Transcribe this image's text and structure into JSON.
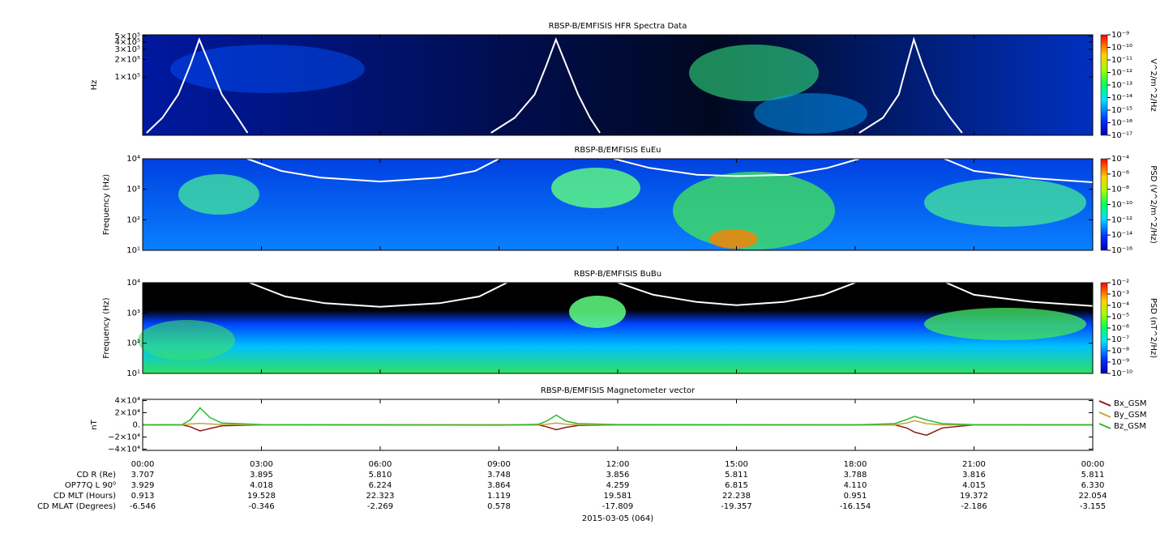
{
  "chart_data": [
    {
      "type": "spectrogram",
      "title": "RBSP-B/EMFISIS  HFR Spectra Data",
      "ylabel": "Hz",
      "log_y": true,
      "ylim": [
        10000,
        530000
      ],
      "yticks": [
        {
          "value": 100000,
          "label": "1×10⁵"
        },
        {
          "value": 200000,
          "label": "2×10⁵"
        },
        {
          "value": 300000,
          "label": "3×10⁵"
        },
        {
          "value": 400000,
          "label": "4×10⁵"
        },
        {
          "value": 500000,
          "label": "5×10⁵"
        }
      ],
      "colorbar": {
        "label": "V^2/m^2/Hz",
        "zlim": [
          1e-17,
          1e-09
        ],
        "ticks": [
          {
            "value": 1e-17,
            "label": "10⁻¹⁷"
          },
          {
            "value": 1e-16,
            "label": "10⁻¹⁶"
          },
          {
            "value": 1e-15,
            "label": "10⁻¹⁵"
          },
          {
            "value": 1e-14,
            "label": "10⁻¹⁴"
          },
          {
            "value": 1e-13,
            "label": "10⁻¹³"
          },
          {
            "value": 1e-12,
            "label": "10⁻¹²"
          },
          {
            "value": 1e-11,
            "label": "10⁻¹¹"
          },
          {
            "value": 1e-10,
            "label": "10⁻¹⁰"
          },
          {
            "value": 1e-09,
            "label": "10⁻⁹"
          }
        ]
      },
      "curve": {
        "color": "#ffffff",
        "x": [
          0.1,
          0.5,
          0.9,
          1.2,
          1.43,
          1.7,
          2.0,
          2.4,
          2.65,
          5,
          8.8,
          9.4,
          9.9,
          10.2,
          10.44,
          10.7,
          11.0,
          11.3,
          11.55,
          15,
          18.1,
          18.7,
          19.1,
          19.3,
          19.48,
          19.7,
          20.0,
          20.4,
          20.7
        ],
        "values": [
          11000,
          20000,
          50000,
          160000,
          440000,
          160000,
          50000,
          20000,
          11000,
          null,
          11000,
          20000,
          50000,
          160000,
          440000,
          160000,
          50000,
          20000,
          11000,
          null,
          11000,
          20000,
          50000,
          160000,
          440000,
          160000,
          50000,
          20000,
          11000
        ]
      }
    },
    {
      "type": "spectrogram",
      "title": "RBSP-B/EMFISIS  EuEu",
      "ylabel": "Frequency (Hz)",
      "log_y": true,
      "ylim": [
        10,
        10000
      ],
      "yticks": [
        {
          "value": 10,
          "label": "10¹"
        },
        {
          "value": 100,
          "label": "10²"
        },
        {
          "value": 1000,
          "label": "10³"
        },
        {
          "value": 10000,
          "label": "10⁴"
        }
      ],
      "colorbar": {
        "label": "PSD (V^2/m^2/Hz)",
        "zlim": [
          1e-16,
          0.0001
        ],
        "ticks": [
          {
            "value": 1e-16,
            "label": "10⁻¹⁶"
          },
          {
            "value": 1e-14,
            "label": "10⁻¹⁴"
          },
          {
            "value": 1e-12,
            "label": "10⁻¹²"
          },
          {
            "value": 1e-10,
            "label": "10⁻¹⁰"
          },
          {
            "value": 1e-08,
            "label": "10⁻⁸"
          },
          {
            "value": 1e-06,
            "label": "10⁻⁶"
          },
          {
            "value": 0.0001,
            "label": "10⁻⁴"
          }
        ]
      },
      "curve": {
        "color": "#ffffff",
        "x": [
          2.64,
          3.5,
          4.5,
          6,
          7.5,
          8.4,
          9.0,
          10,
          11.9,
          12.8,
          14,
          15,
          16.3,
          17.3,
          18.1,
          19,
          20.25,
          21,
          22.5,
          24
        ],
        "values": [
          10000,
          4000,
          2400,
          1800,
          2400,
          4000,
          10000,
          null,
          10000,
          5000,
          3000,
          2700,
          3000,
          5000,
          10000,
          null,
          10000,
          4000,
          2300,
          1700
        ]
      }
    },
    {
      "type": "spectrogram",
      "title": "RBSP-B/EMFISIS  BuBu",
      "ylabel": "Frequency (Hz)",
      "log_y": true,
      "ylim": [
        10,
        10000
      ],
      "yticks": [
        {
          "value": 10,
          "label": "10¹"
        },
        {
          "value": 100,
          "label": "10²"
        },
        {
          "value": 1000,
          "label": "10³"
        },
        {
          "value": 10000,
          "label": "10⁴"
        }
      ],
      "colorbar": {
        "label": "PSD (nT^2/Hz)",
        "zlim": [
          1e-10,
          0.01
        ],
        "ticks": [
          {
            "value": 1e-10,
            "label": "10⁻¹⁰"
          },
          {
            "value": 1e-09,
            "label": "10⁻⁹"
          },
          {
            "value": 1e-08,
            "label": "10⁻⁸"
          },
          {
            "value": 1e-07,
            "label": "10⁻⁷"
          },
          {
            "value": 1e-06,
            "label": "10⁻⁶"
          },
          {
            "value": 1e-05,
            "label": "10⁻⁵"
          },
          {
            "value": 0.0001,
            "label": "10⁻⁴"
          },
          {
            "value": 0.001,
            "label": "10⁻³"
          },
          {
            "value": 0.01,
            "label": "10⁻²"
          }
        ]
      },
      "curve": {
        "color": "#ffffff",
        "x": [
          2.7,
          3.6,
          4.6,
          6,
          7.5,
          8.5,
          9.2,
          10,
          12.0,
          12.9,
          14,
          15,
          16.2,
          17.2,
          18.0,
          19,
          20.3,
          21,
          22.5,
          24
        ],
        "values": [
          10000,
          3500,
          2100,
          1600,
          2100,
          3500,
          10000,
          null,
          10000,
          4000,
          2300,
          1800,
          2300,
          4000,
          10000,
          null,
          10000,
          4000,
          2300,
          1700
        ]
      }
    },
    {
      "type": "line",
      "title": "RBSP-B/EMFISIS  Magnetometer vector",
      "ylabel": "nT",
      "ylim": [
        -42000,
        42000
      ],
      "yticks": [
        {
          "value": -40000,
          "label": "−4×10⁴"
        },
        {
          "value": -20000,
          "label": "−2×10⁴"
        },
        {
          "value": 0,
          "label": "0."
        },
        {
          "value": 20000,
          "label": "2×10⁴"
        },
        {
          "value": 40000,
          "label": "4×10⁴"
        }
      ],
      "xlim": [
        0,
        24
      ],
      "xticks": [
        {
          "value": 0,
          "label": "00:00"
        },
        {
          "value": 3,
          "label": "03:00"
        },
        {
          "value": 6,
          "label": "06:00"
        },
        {
          "value": 9,
          "label": "09:00"
        },
        {
          "value": 12,
          "label": "12:00"
        },
        {
          "value": 15,
          "label": "15:00"
        },
        {
          "value": 18,
          "label": "18:00"
        },
        {
          "value": 21,
          "label": "21:00"
        },
        {
          "value": 24,
          "label": "00:00"
        }
      ],
      "x": [
        0,
        1,
        1.2,
        1.45,
        1.7,
        2,
        3,
        9,
        10,
        10.2,
        10.45,
        10.7,
        11,
        12,
        18,
        19,
        19.3,
        19.5,
        19.8,
        20.2,
        21,
        24
      ],
      "series": [
        {
          "name": "Bx_GSM",
          "color": "#8b1a1a",
          "values": [
            0,
            0,
            -3000,
            -10000,
            -6000,
            -1500,
            0,
            0,
            0,
            -3000,
            -8000,
            -4000,
            -1000,
            0,
            0,
            0,
            -5000,
            -12000,
            -17000,
            -5000,
            0,
            0
          ]
        },
        {
          "name": "By_GSM",
          "color": "#c8a040",
          "values": [
            0,
            0,
            1500,
            2500,
            1500,
            500,
            0,
            0,
            0,
            1000,
            3000,
            1000,
            0,
            0,
            0,
            0,
            3000,
            7000,
            2000,
            0,
            0,
            0
          ]
        },
        {
          "name": "Bz_GSM",
          "color": "#2db82d",
          "values": [
            0,
            500,
            8000,
            28000,
            12000,
            3000,
            500,
            -500,
            1000,
            6000,
            16000,
            6000,
            2000,
            500,
            0,
            2000,
            9000,
            14000,
            8000,
            2000,
            300,
            0
          ]
        }
      ]
    }
  ],
  "ephemeris": {
    "rows": [
      {
        "label": "CD R (Re)",
        "values": [
          "3.707",
          "3.895",
          "5.810",
          "3.748",
          "3.856",
          "5.811",
          "3.788",
          "3.816",
          "5.811"
        ]
      },
      {
        "label": "OP77Q L 90⁰",
        "values": [
          "3.929",
          "4.018",
          "6.224",
          "3.864",
          "4.259",
          "6.815",
          "4.110",
          "4.015",
          "6.330"
        ]
      },
      {
        "label": "CD MLT (Hours)",
        "values": [
          "0.913",
          "19.528",
          "22.323",
          "1.119",
          "19.581",
          "22.238",
          "0.951",
          "19.372",
          "22.054"
        ]
      },
      {
        "label": "CD MLAT (Degrees)",
        "values": [
          "-6.546",
          "-0.346",
          "-2.269",
          "0.578",
          "-17.809",
          "-19.357",
          "-16.154",
          "-2.186",
          "-3.155"
        ]
      }
    ],
    "date": "2015-03-05 (064)"
  }
}
